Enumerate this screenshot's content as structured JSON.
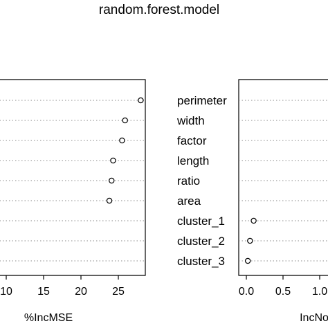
{
  "chart_data": [
    {
      "type": "scatter",
      "title": "random.forest.model",
      "xlabel": "%IncMSE",
      "x_ticks": [
        10,
        15,
        20,
        25
      ],
      "categories": [
        "perimeter",
        "width",
        "factor",
        "length",
        "ratio",
        "area",
        "cluster_1",
        "cluster_2",
        "cluster_3"
      ],
      "values": [
        28,
        25.9,
        25.5,
        24.3,
        24.1,
        23.8,
        null,
        null,
        null
      ],
      "grid": "dotted horizontal per category"
    },
    {
      "type": "scatter",
      "xlabel": "IncNo",
      "x_ticks": [
        0.0,
        0.5,
        1.0
      ],
      "x_tick_labels": [
        "0.0",
        "0.5",
        "1.0"
      ],
      "categories": [
        "perimeter",
        "width",
        "factor",
        "length",
        "ratio",
        "area",
        "cluster_1",
        "cluster_2",
        "cluster_3"
      ],
      "values": [
        null,
        null,
        null,
        null,
        null,
        null,
        0.1,
        0.05,
        0.02
      ],
      "grid": "dotted horizontal per category"
    }
  ]
}
